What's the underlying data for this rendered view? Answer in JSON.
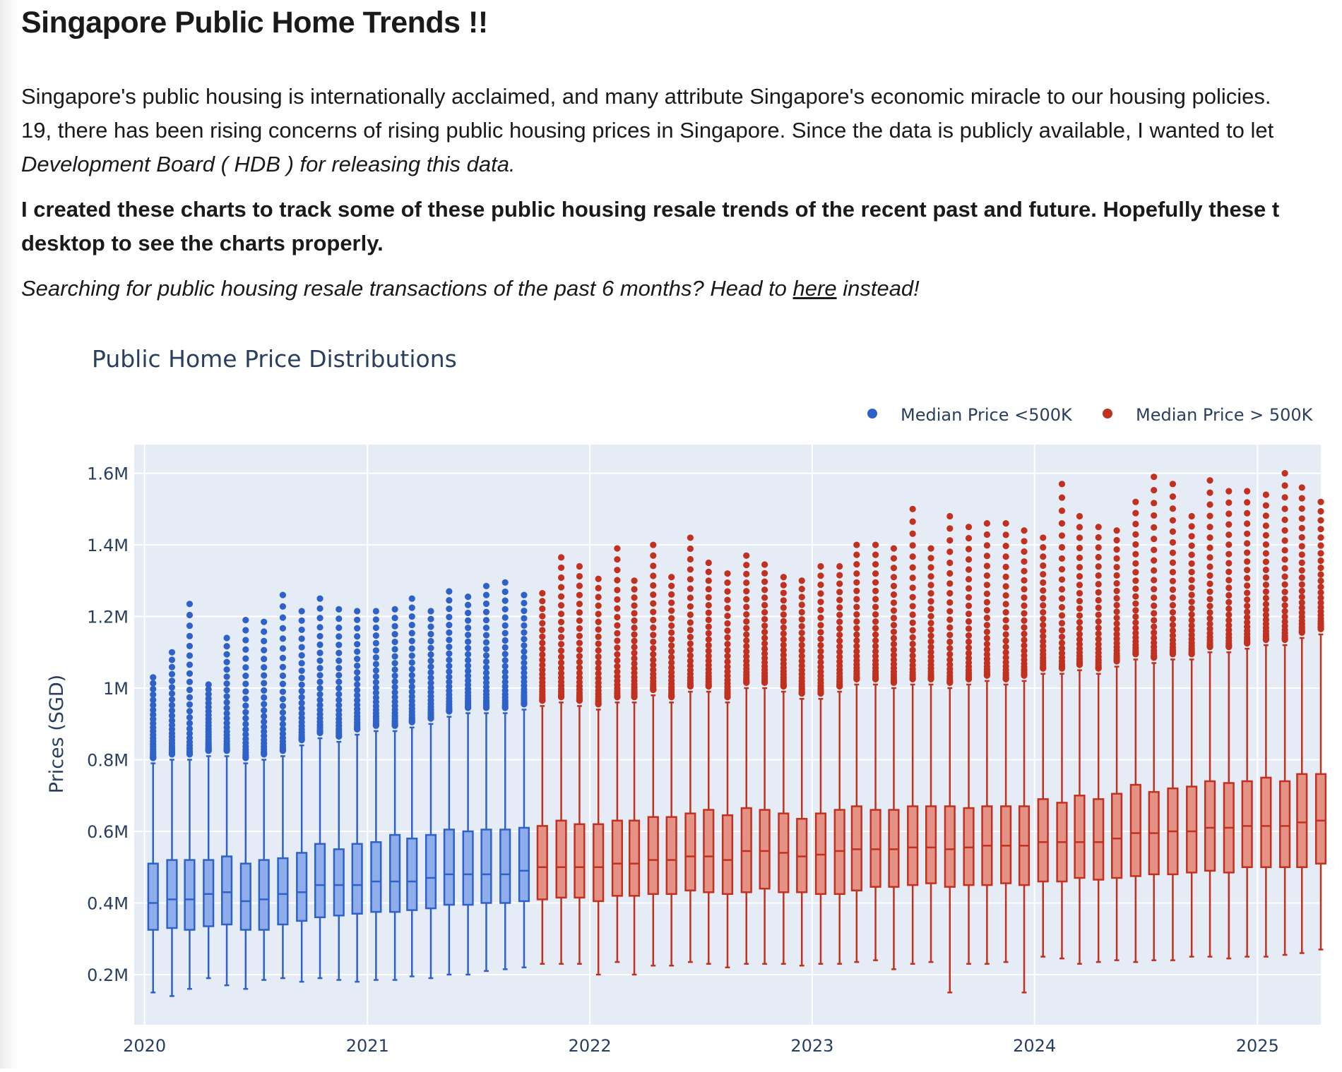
{
  "page": {
    "title": "Singapore Public Home Trends !!",
    "intro": {
      "line1": "Singapore's public housing is internationally acclaimed, and many attribute Singapore's economic miracle to our housing policies.",
      "line2": "19, there has been rising concerns of rising public housing prices in Singapore. Since the data is publicly available, I wanted to let",
      "line3": "Development Board ( HDB ) for releasing this data."
    },
    "bold_note": {
      "line1": "I created these charts to track some of these public housing resale trends of the recent past and future. Hopefully these t",
      "line2": "desktop to see the charts properly."
    },
    "search_note": {
      "before": "Searching for public housing resale transactions of the past 6 months? Head to ",
      "link": "here",
      "after": " instead!"
    }
  },
  "chart_data": {
    "type": "box",
    "title": "Public Home Price Distributions",
    "ylabel": "Prices (SGD)",
    "xlabel": "",
    "ylim": [
      60000,
      1680000
    ],
    "xlim": [
      "2019-12-15",
      "2025-04-15"
    ],
    "grid": true,
    "legend_position": "top-right",
    "x_ticks": [
      "2020",
      "2021",
      "2022",
      "2023",
      "2024",
      "2025"
    ],
    "y_ticks": [
      {
        "value": 200000,
        "label": "0.2M"
      },
      {
        "value": 400000,
        "label": "0.4M"
      },
      {
        "value": 600000,
        "label": "0.6M"
      },
      {
        "value": 800000,
        "label": "0.8M"
      },
      {
        "value": 1000000,
        "label": "1M"
      },
      {
        "value": 1200000,
        "label": "1.2M"
      },
      {
        "value": 1400000,
        "label": "1.4M"
      },
      {
        "value": 1600000,
        "label": "1.6M"
      }
    ],
    "series": [
      {
        "name": "Median Price <500K",
        "color": "#2f62c9",
        "fill": "#8fadea"
      },
      {
        "name": "Median Price > 500K",
        "color": "#c2311f",
        "fill": "#e49186"
      }
    ],
    "months": [
      "2020-01",
      "2020-02",
      "2020-03",
      "2020-04",
      "2020-05",
      "2020-06",
      "2020-07",
      "2020-08",
      "2020-09",
      "2020-10",
      "2020-11",
      "2020-12",
      "2021-01",
      "2021-02",
      "2021-03",
      "2021-04",
      "2021-05",
      "2021-06",
      "2021-07",
      "2021-08",
      "2021-09",
      "2021-10",
      "2021-11",
      "2021-12",
      "2022-01",
      "2022-02",
      "2022-03",
      "2022-04",
      "2022-05",
      "2022-06",
      "2022-07",
      "2022-08",
      "2022-09",
      "2022-10",
      "2022-11",
      "2022-12",
      "2023-01",
      "2023-02",
      "2023-03",
      "2023-04",
      "2023-05",
      "2023-06",
      "2023-07",
      "2023-08",
      "2023-09",
      "2023-10",
      "2023-11",
      "2023-12",
      "2024-01",
      "2024-02",
      "2024-03",
      "2024-04",
      "2024-05",
      "2024-06",
      "2024-07",
      "2024-08",
      "2024-09",
      "2024-10",
      "2024-11",
      "2024-12",
      "2025-01",
      "2025-02",
      "2025-03",
      "2025-04"
    ],
    "series_index": [
      0,
      0,
      0,
      0,
      0,
      0,
      0,
      0,
      0,
      0,
      0,
      0,
      0,
      0,
      0,
      0,
      0,
      0,
      0,
      0,
      0,
      1,
      1,
      1,
      1,
      1,
      1,
      1,
      1,
      1,
      1,
      1,
      1,
      1,
      1,
      1,
      1,
      1,
      1,
      1,
      1,
      1,
      1,
      1,
      1,
      1,
      1,
      1,
      1,
      1,
      1,
      1,
      1,
      1,
      1,
      1,
      1,
      1,
      1,
      1,
      1,
      1,
      1,
      1
    ],
    "min": [
      150000,
      140000,
      160000,
      190000,
      170000,
      160000,
      185000,
      190000,
      180000,
      190000,
      185000,
      180000,
      185000,
      185000,
      195000,
      190000,
      200000,
      200000,
      210000,
      215000,
      220000,
      230000,
      230000,
      230000,
      200000,
      235000,
      200000,
      225000,
      225000,
      235000,
      230000,
      220000,
      230000,
      230000,
      230000,
      225000,
      230000,
      230000,
      235000,
      240000,
      215000,
      230000,
      235000,
      150000,
      230000,
      230000,
      235000,
      150000,
      250000,
      245000,
      230000,
      235000,
      240000,
      235000,
      240000,
      240000,
      250000,
      250000,
      245000,
      250000,
      250000,
      255000,
      260000,
      270000
    ],
    "q1": [
      325000,
      330000,
      325000,
      335000,
      340000,
      325000,
      325000,
      340000,
      350000,
      360000,
      365000,
      370000,
      375000,
      375000,
      380000,
      385000,
      395000,
      395000,
      400000,
      400000,
      405000,
      410000,
      415000,
      415000,
      405000,
      420000,
      420000,
      425000,
      425000,
      435000,
      430000,
      425000,
      430000,
      440000,
      430000,
      430000,
      425000,
      425000,
      435000,
      445000,
      445000,
      450000,
      455000,
      445000,
      450000,
      450000,
      455000,
      450000,
      460000,
      460000,
      470000,
      465000,
      470000,
      475000,
      480000,
      480000,
      485000,
      490000,
      485000,
      500000,
      500000,
      500000,
      500000,
      510000
    ],
    "median": [
      400000,
      410000,
      410000,
      425000,
      430000,
      405000,
      410000,
      425000,
      430000,
      450000,
      450000,
      450000,
      460000,
      460000,
      460000,
      470000,
      480000,
      480000,
      480000,
      480000,
      490000,
      500000,
      500000,
      500000,
      500000,
      510000,
      510000,
      520000,
      520000,
      530000,
      530000,
      520000,
      545000,
      545000,
      540000,
      530000,
      535000,
      545000,
      550000,
      550000,
      550000,
      555000,
      555000,
      550000,
      555000,
      560000,
      560000,
      560000,
      570000,
      570000,
      570000,
      570000,
      580000,
      595000,
      595000,
      600000,
      600000,
      610000,
      610000,
      615000,
      615000,
      615000,
      625000,
      630000
    ],
    "q3": [
      510000,
      520000,
      520000,
      520000,
      530000,
      510000,
      520000,
      525000,
      540000,
      565000,
      550000,
      565000,
      570000,
      590000,
      580000,
      590000,
      605000,
      600000,
      605000,
      605000,
      610000,
      615000,
      630000,
      620000,
      620000,
      630000,
      630000,
      640000,
      640000,
      650000,
      660000,
      645000,
      665000,
      660000,
      650000,
      635000,
      650000,
      660000,
      670000,
      660000,
      660000,
      670000,
      670000,
      670000,
      665000,
      670000,
      670000,
      670000,
      690000,
      680000,
      700000,
      690000,
      705000,
      730000,
      710000,
      720000,
      725000,
      740000,
      735000,
      740000,
      750000,
      740000,
      760000,
      760000
    ],
    "max": [
      790000,
      800000,
      800000,
      810000,
      810000,
      790000,
      800000,
      810000,
      840000,
      860000,
      850000,
      870000,
      880000,
      880000,
      890000,
      900000,
      920000,
      930000,
      930000,
      930000,
      940000,
      950000,
      960000,
      950000,
      940000,
      960000,
      960000,
      980000,
      960000,
      990000,
      990000,
      960000,
      1000000,
      1000000,
      990000,
      970000,
      970000,
      990000,
      1010000,
      1010000,
      1000000,
      1010000,
      1010000,
      1000000,
      1010000,
      1020000,
      1010000,
      1020000,
      1040000,
      1040000,
      1050000,
      1040000,
      1060000,
      1080000,
      1070000,
      1080000,
      1080000,
      1100000,
      1100000,
      1110000,
      1120000,
      1120000,
      1140000,
      1150000
    ],
    "outlier_top": [
      1030000,
      1100000,
      1235000,
      1010000,
      1140000,
      1190000,
      1185000,
      1260000,
      1215000,
      1250000,
      1220000,
      1215000,
      1215000,
      1220000,
      1250000,
      1215000,
      1270000,
      1255000,
      1285000,
      1295000,
      1260000,
      1265000,
      1365000,
      1340000,
      1305000,
      1390000,
      1300000,
      1400000,
      1310000,
      1420000,
      1350000,
      1320000,
      1370000,
      1345000,
      1310000,
      1300000,
      1340000,
      1340000,
      1400000,
      1400000,
      1390000,
      1500000,
      1390000,
      1480000,
      1450000,
      1460000,
      1460000,
      1440000,
      1420000,
      1570000,
      1480000,
      1450000,
      1440000,
      1520000,
      1590000,
      1570000,
      1480000,
      1580000,
      1550000,
      1550000,
      1540000,
      1600000,
      1560000,
      1520000
    ]
  }
}
